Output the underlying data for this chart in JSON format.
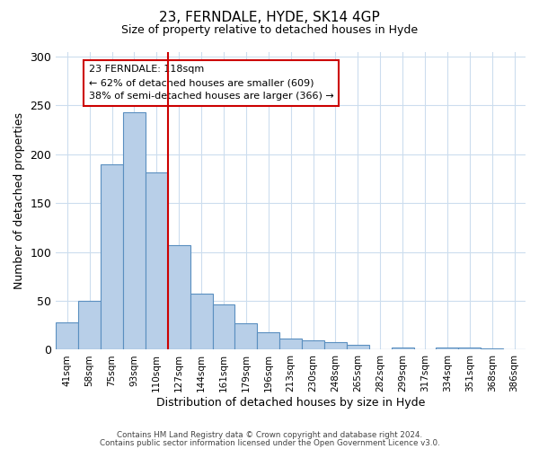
{
  "title": "23, FERNDALE, HYDE, SK14 4GP",
  "subtitle": "Size of property relative to detached houses in Hyde",
  "xlabel": "Distribution of detached houses by size in Hyde",
  "ylabel": "Number of detached properties",
  "bin_labels": [
    "41sqm",
    "58sqm",
    "75sqm",
    "93sqm",
    "110sqm",
    "127sqm",
    "144sqm",
    "161sqm",
    "179sqm",
    "196sqm",
    "213sqm",
    "230sqm",
    "248sqm",
    "265sqm",
    "282sqm",
    "299sqm",
    "317sqm",
    "334sqm",
    "351sqm",
    "368sqm",
    "386sqm"
  ],
  "bar_values": [
    28,
    50,
    190,
    243,
    181,
    107,
    57,
    46,
    27,
    18,
    11,
    10,
    8,
    5,
    0,
    2,
    0,
    2,
    2,
    1,
    0
  ],
  "bar_color": "#b8cfe8",
  "bar_edge_color": "#5a8fc0",
  "vline_x": 4.5,
  "vline_color": "#cc0000",
  "annotation_title": "23 FERNDALE: 118sqm",
  "annotation_line1": "← 62% of detached houses are smaller (609)",
  "annotation_line2": "38% of semi-detached houses are larger (366) →",
  "annotation_box_color": "#ffffff",
  "annotation_box_edge": "#cc0000",
  "ylim": [
    0,
    305
  ],
  "yticks": [
    0,
    50,
    100,
    150,
    200,
    250,
    300
  ],
  "footer1": "Contains HM Land Registry data © Crown copyright and database right 2024.",
  "footer2": "Contains public sector information licensed under the Open Government Licence v3.0.",
  "bg_color": "#ffffff",
  "grid_color": "#ccddee"
}
